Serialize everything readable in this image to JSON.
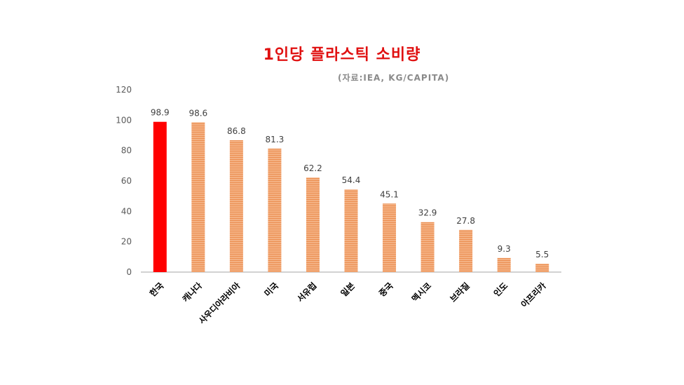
{
  "title": "1인당 플라스틱 소비량",
  "subtitle": "(자료:IEA, KG/CAPITA)",
  "colors": {
    "title": "#e01010",
    "highlight": "#ff0000",
    "bar": "#f4b183",
    "bar_stripe": "#eb8f52",
    "axis": "#a6a6a6"
  },
  "chart_data": {
    "type": "bar",
    "categories": [
      "한국",
      "캐나다",
      "사우디아라비아",
      "미국",
      "서유럽",
      "일본",
      "중국",
      "멕시코",
      "브라질",
      "인도",
      "아프리카"
    ],
    "values": [
      98.9,
      98.6,
      86.8,
      81.3,
      62.2,
      54.4,
      45.1,
      32.9,
      27.8,
      9.3,
      5.5
    ],
    "data_labels": [
      "98.9",
      "98.6",
      "86.8",
      "81.3",
      "62.2",
      "54.4",
      "45.1",
      "32.9",
      "27.8",
      "9.3",
      "5.5"
    ],
    "highlight_category": "한국",
    "ylim": [
      0,
      120
    ],
    "yticks": [
      "0",
      "20",
      "40",
      "60",
      "80",
      "100",
      "120"
    ],
    "title": "1인당 플라스틱 소비량",
    "subtitle": "(자료:IEA, KG/CAPITA)",
    "xlabel": "",
    "ylabel": "",
    "grid": false,
    "legend": "none"
  }
}
